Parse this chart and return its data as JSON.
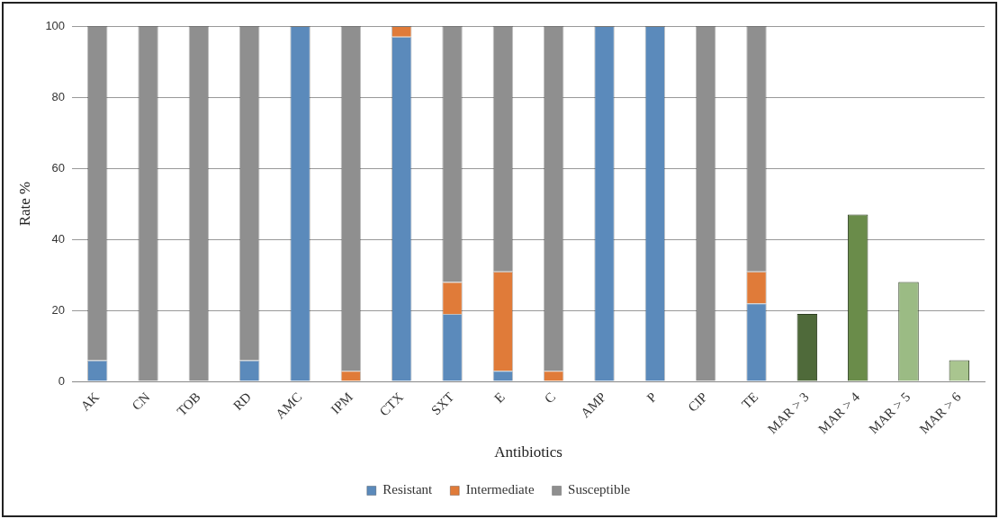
{
  "chart_data": {
    "type": "bar",
    "xlabel": "Antibiotics",
    "ylabel": "Rate %",
    "stacked": true,
    "grid": "y",
    "legend": "bottom",
    "categories": [
      "AK",
      "CN",
      "TOB",
      "RD",
      "AMC",
      "IPM",
      "CTX",
      "SXT",
      "E",
      "C",
      "AMP",
      "P",
      "CIP",
      "TE",
      "MAR > 3",
      "MAR > 4",
      "MAR > 5",
      "MAR > 6"
    ],
    "ylim": [
      0,
      100
    ],
    "yticks": [
      0,
      20,
      40,
      60,
      80,
      100
    ],
    "series": [
      {
        "name": "Resistant",
        "color": "#5b8abb",
        "values": [
          6,
          0,
          0,
          6,
          100,
          0,
          97,
          19,
          3,
          0,
          100,
          100,
          0,
          22,
          null,
          null,
          null,
          null
        ]
      },
      {
        "name": "Intermediate",
        "color": "#e07b39",
        "values": [
          0,
          0,
          0,
          0,
          0,
          3,
          3,
          9,
          28,
          3,
          0,
          0,
          0,
          9,
          null,
          null,
          null,
          null
        ]
      },
      {
        "name": "Susceptible",
        "color": "#8f8f8f",
        "values": [
          94,
          100,
          100,
          94,
          0,
          97,
          0,
          72,
          69,
          97,
          0,
          0,
          100,
          69,
          null,
          null,
          null,
          null
        ]
      },
      {
        "colors": [
          null,
          null,
          null,
          null,
          null,
          null,
          null,
          null,
          null,
          null,
          null,
          null,
          null,
          null,
          "#4f6a3a",
          "#6a8c4a",
          "#9bbb84",
          "#a9c58f"
        ],
        "values": [
          null,
          null,
          null,
          null,
          null,
          null,
          null,
          null,
          null,
          null,
          null,
          null,
          null,
          null,
          19,
          47,
          28,
          6
        ]
      }
    ]
  }
}
